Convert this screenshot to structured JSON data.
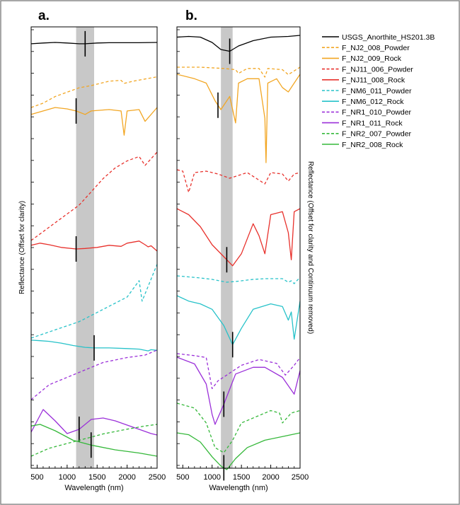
{
  "figure": {
    "legend": [
      {
        "name": "USGS_Anorthite_HS201.3B",
        "color": "#000000",
        "dash": false
      },
      {
        "name": "F_NJ2_008_Powder",
        "color": "#f2a623",
        "dash": true
      },
      {
        "name": "F_NJ2_009_Rock",
        "color": "#f2a623",
        "dash": false
      },
      {
        "name": "F_NJ11_006_Powder",
        "color": "#e8312c",
        "dash": true
      },
      {
        "name": "F_NJ11_008_Rock",
        "color": "#e8312c",
        "dash": false
      },
      {
        "name": "F_NM6_011_Powder",
        "color": "#27c2c9",
        "dash": true
      },
      {
        "name": "F_NM6_012_Rock",
        "color": "#27c2c9",
        "dash": false
      },
      {
        "name": "F_NR1_010_Powder",
        "color": "#9b30d9",
        "dash": true
      },
      {
        "name": "F_NR1_011_Rock",
        "color": "#9b30d9",
        "dash": false
      },
      {
        "name": "F_NR2_007_Powder",
        "color": "#35b83a",
        "dash": true
      },
      {
        "name": "F_NR2_008_Rock",
        "color": "#35b83a",
        "dash": false
      }
    ]
  },
  "chart_data": [
    {
      "type": "line",
      "panel_label": "a.",
      "xlabel": "Wavelength (nm)",
      "ylabel": "Reflectance (Offset for clarity)",
      "xlim": [
        400,
        2500
      ],
      "xticks": [
        500,
        1000,
        1500,
        2000,
        2500
      ],
      "shaded_band": [
        1150,
        1450
      ],
      "series": [
        {
          "name": "USGS_Anorthite_HS201.3B",
          "x": [
            400,
            600,
            800,
            1000,
            1200,
            1300,
            1500,
            1700,
            2000,
            2200,
            2500
          ],
          "y": [
            0.95,
            0.98,
            1.0,
            0.98,
            0.95,
            0.95,
            0.98,
            0.99,
            0.99,
            0.99,
            1.0
          ],
          "marker_nm": 1300
        },
        {
          "name": "F_NJ2_008_Powder",
          "x": [
            400,
            600,
            800,
            1000,
            1200,
            1400,
            1700,
            1900,
            1950,
            2100,
            2300,
            2500
          ],
          "y": [
            0.0,
            0.1,
            0.25,
            0.35,
            0.45,
            0.5,
            0.6,
            0.62,
            0.55,
            0.6,
            0.65,
            0.7
          ]
        },
        {
          "name": "F_NJ2_009_Rock",
          "x": [
            400,
            600,
            800,
            1000,
            1150,
            1300,
            1400,
            1700,
            1900,
            1950,
            2000,
            2200,
            2300,
            2500
          ],
          "y": [
            0.9,
            0.95,
            1.0,
            0.98,
            0.95,
            0.9,
            0.95,
            0.97,
            0.95,
            0.6,
            0.95,
            0.97,
            0.8,
            1.0
          ],
          "marker_nm": 1150
        },
        {
          "name": "F_NJ11_006_Powder",
          "x": [
            400,
            600,
            800,
            1000,
            1200,
            1400,
            1600,
            1800,
            2000,
            2200,
            2300,
            2500
          ],
          "y": [
            0.0,
            0.1,
            0.2,
            0.3,
            0.4,
            0.55,
            0.7,
            0.82,
            0.9,
            0.95,
            0.85,
            1.0
          ]
        },
        {
          "name": "F_NJ11_008_Rock",
          "x": [
            400,
            550,
            700,
            900,
            1150,
            1300,
            1500,
            1700,
            1900,
            2000,
            2100,
            2200,
            2300,
            2350,
            2400,
            2500
          ],
          "y": [
            0.55,
            0.75,
            0.6,
            0.35,
            0.2,
            0.25,
            0.35,
            0.55,
            0.45,
            0.75,
            0.85,
            0.95,
            0.6,
            0.4,
            0.5,
            0.0
          ],
          "marker_nm": 1150
        },
        {
          "name": "F_NM6_011_Powder",
          "x": [
            400,
            800,
            1200,
            1600,
            2000,
            2200,
            2250,
            2500
          ],
          "y": [
            0.0,
            0.1,
            0.2,
            0.35,
            0.5,
            0.7,
            0.45,
            0.9
          ]
        },
        {
          "name": "F_NM6_012_Rock",
          "x": [
            400,
            550,
            700,
            900,
            1100,
            1300,
            1450,
            1700,
            2000,
            2200,
            2350,
            2400,
            2500
          ],
          "y": [
            0.95,
            0.9,
            0.85,
            0.7,
            0.5,
            0.35,
            0.3,
            0.3,
            0.25,
            0.2,
            0.05,
            0.15,
            0.1
          ],
          "marker_nm": 1450
        },
        {
          "name": "F_NR1_010_Powder",
          "x": [
            400,
            700,
            1000,
            1300,
            1600,
            2000,
            2300,
            2500
          ],
          "y": [
            0.0,
            0.3,
            0.45,
            0.6,
            0.75,
            0.85,
            0.9,
            1.0
          ]
        },
        {
          "name": "F_NR1_011_Rock",
          "x": [
            400,
            600,
            800,
            1000,
            1200,
            1400,
            1600,
            1800,
            2000,
            2200,
            2400,
            2500
          ],
          "y": [
            0.1,
            0.9,
            0.5,
            0.05,
            0.2,
            0.55,
            0.6,
            0.5,
            0.35,
            0.2,
            0.05,
            0.0
          ],
          "marker_nm": 1200
        },
        {
          "name": "F_NR2_007_Powder",
          "x": [
            400,
            700,
            1000,
            1300,
            1600,
            2000,
            2300,
            2500
          ],
          "y": [
            0.0,
            0.25,
            0.4,
            0.55,
            0.7,
            0.85,
            0.95,
            1.0
          ]
        },
        {
          "name": "F_NR2_008_Rock",
          "x": [
            400,
            550,
            800,
            1100,
            1400,
            1800,
            2200,
            2500
          ],
          "y": [
            0.95,
            1.0,
            0.8,
            0.5,
            0.35,
            0.2,
            0.1,
            0.0
          ],
          "marker_nm": 1400
        }
      ]
    },
    {
      "type": "line",
      "panel_label": "b.",
      "xlabel": "Wavelength (nm)",
      "ylabel": "Reflectance (Offset for clarity and Continuum removed)",
      "xlim": [
        400,
        2500
      ],
      "xticks": [
        500,
        1000,
        1500,
        2000,
        2500
      ],
      "shaded_band": [
        1150,
        1350
      ],
      "series": [
        {
          "name": "USGS_Anorthite_HS201.3B",
          "x": [
            400,
            600,
            800,
            1000,
            1150,
            1300,
            1450,
            1700,
            2000,
            2300,
            2500
          ],
          "y": [
            0.95,
            0.97,
            0.95,
            0.8,
            0.6,
            0.55,
            0.7,
            0.85,
            0.95,
            0.97,
            1.0
          ],
          "marker_nm": 1300
        },
        {
          "name": "F_NJ2_008_Powder",
          "x": [
            400,
            800,
            1200,
            1400,
            1450,
            1600,
            1800,
            1900,
            1950,
            2200,
            2300,
            2500
          ],
          "y": [
            1.0,
            1.0,
            0.95,
            0.9,
            0.75,
            0.95,
            0.95,
            0.6,
            0.95,
            0.9,
            0.7,
            1.0
          ]
        },
        {
          "name": "F_NJ2_009_Rock",
          "x": [
            400,
            700,
            900,
            1050,
            1150,
            1300,
            1400,
            1450,
            1600,
            1800,
            1900,
            1920,
            1950,
            2100,
            2200,
            2300,
            2500
          ],
          "y": [
            1.0,
            0.95,
            0.9,
            0.7,
            0.6,
            0.75,
            0.45,
            0.9,
            0.95,
            0.95,
            0.5,
            0.0,
            0.9,
            0.95,
            0.85,
            0.8,
            1.0
          ],
          "marker_nm": 1100
        },
        {
          "name": "F_NJ11_006_Powder",
          "x": [
            400,
            500,
            600,
            700,
            900,
            1100,
            1300,
            1450,
            1600,
            1900,
            2000,
            2200,
            2300,
            2400,
            2500
          ],
          "y": [
            1.0,
            0.95,
            0.2,
            0.9,
            0.95,
            0.85,
            0.7,
            0.8,
            0.9,
            0.5,
            0.9,
            0.85,
            0.6,
            0.85,
            0.9
          ]
        },
        {
          "name": "F_NJ11_008_Rock",
          "x": [
            400,
            600,
            800,
            1000,
            1200,
            1350,
            1500,
            1700,
            1800,
            1900,
            2000,
            2200,
            2300,
            2350,
            2400,
            2500
          ],
          "y": [
            1.0,
            0.9,
            0.7,
            0.4,
            0.2,
            0.05,
            0.25,
            0.75,
            0.55,
            0.25,
            0.9,
            0.95,
            0.6,
            0.15,
            0.95,
            1.0
          ],
          "marker_nm": 1250
        },
        {
          "name": "F_NM6_011_Powder",
          "x": [
            400,
            800,
            1000,
            1250,
            1400,
            1700,
            1900,
            2000,
            2200,
            2300,
            2350,
            2400,
            2500
          ],
          "y": [
            1.0,
            0.85,
            0.75,
            0.55,
            0.6,
            0.75,
            0.8,
            0.8,
            0.8,
            0.55,
            0.65,
            0.45,
            0.9
          ]
        },
        {
          "name": "F_NM6_012_Rock",
          "x": [
            400,
            600,
            800,
            1000,
            1200,
            1350,
            1500,
            1700,
            2000,
            2200,
            2300,
            2350,
            2400,
            2500
          ],
          "y": [
            1.0,
            0.9,
            0.85,
            0.75,
            0.45,
            0.1,
            0.4,
            0.75,
            0.85,
            0.8,
            0.55,
            0.7,
            0.2,
            0.9
          ],
          "marker_nm": 1350
        },
        {
          "name": "F_NR1_010_Powder",
          "x": [
            400,
            700,
            900,
            1000,
            1100,
            1250,
            1500,
            1800,
            2100,
            2250,
            2400,
            2500
          ],
          "y": [
            1.0,
            0.95,
            0.9,
            0.1,
            0.3,
            0.45,
            0.7,
            0.85,
            0.75,
            0.45,
            0.7,
            0.9
          ]
        },
        {
          "name": "F_NR1_011_Rock",
          "x": [
            400,
            700,
            900,
            1000,
            1050,
            1200,
            1400,
            1700,
            1900,
            2200,
            2400,
            2500
          ],
          "y": [
            1.0,
            0.9,
            0.6,
            0.15,
            0.0,
            0.3,
            0.75,
            0.85,
            0.85,
            0.7,
            0.45,
            0.8
          ],
          "marker_nm": 1200
        },
        {
          "name": "F_NR2_007_Powder",
          "x": [
            400,
            700,
            900,
            1050,
            1200,
            1350,
            1500,
            1800,
            2000,
            2150,
            2200,
            2350,
            2500
          ],
          "y": [
            1.0,
            0.9,
            0.6,
            0.1,
            0.0,
            0.25,
            0.6,
            0.75,
            0.85,
            0.8,
            0.6,
            0.8,
            0.85
          ]
        },
        {
          "name": "F_NR2_008_Rock",
          "x": [
            400,
            600,
            800,
            1000,
            1150,
            1250,
            1400,
            1600,
            1900,
            2200,
            2500
          ],
          "y": [
            1.0,
            0.95,
            0.75,
            0.35,
            0.1,
            0.0,
            0.3,
            0.6,
            0.8,
            0.9,
            1.0
          ],
          "marker_nm": 1200
        }
      ]
    }
  ]
}
